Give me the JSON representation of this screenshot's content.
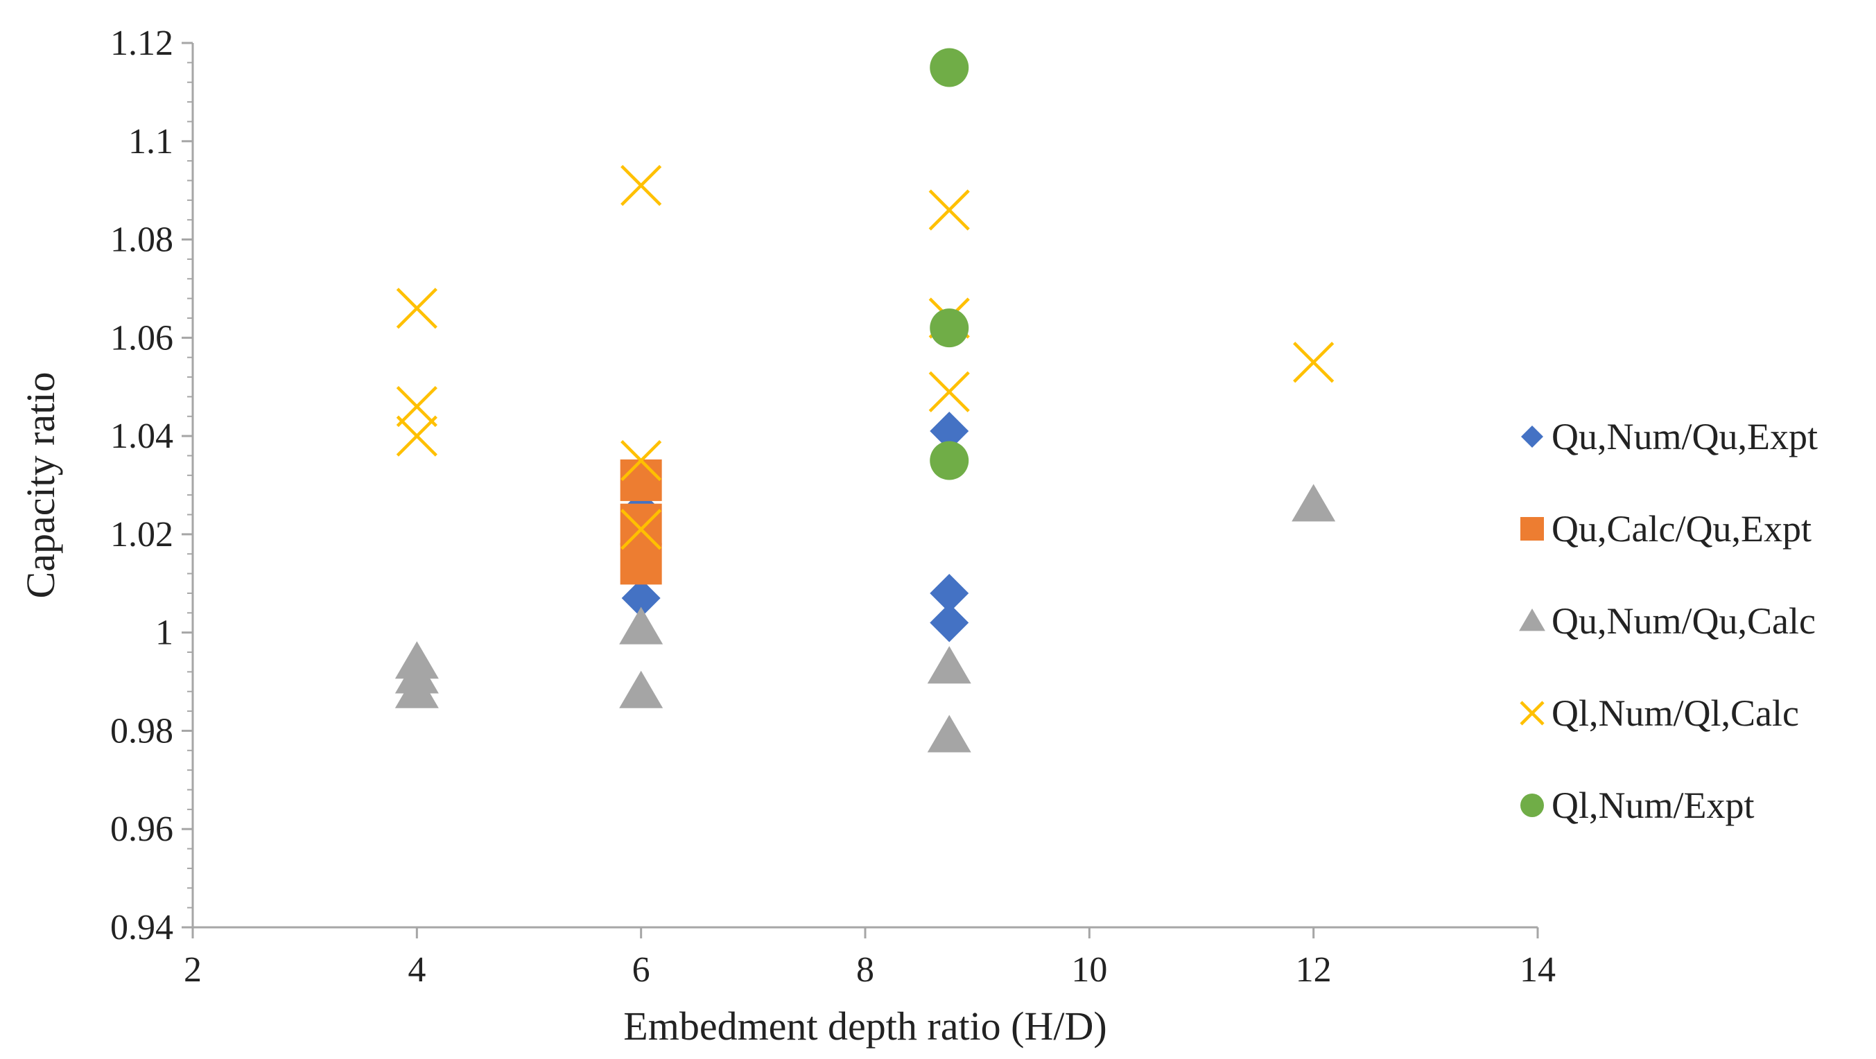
{
  "chart_data": {
    "type": "scatter",
    "title": "",
    "xlabel": "Embedment depth ratio (H/D)",
    "ylabel": "Capacity ratio",
    "xlim": [
      2,
      14
    ],
    "ylim": [
      0.94,
      1.12
    ],
    "x_ticks": [
      2,
      4,
      6,
      8,
      10,
      12,
      14
    ],
    "y_ticks": [
      0.94,
      0.96,
      0.98,
      1,
      1.02,
      1.04,
      1.06,
      1.08,
      1.1,
      1.12
    ],
    "x_tick_labels": [
      "2",
      "4",
      "6",
      "8",
      "10",
      "12",
      "14"
    ],
    "y_tick_labels": [
      "0.94",
      "0.96",
      "0.98",
      "1",
      "1.02",
      "1.04",
      "1.06",
      "1.08",
      "1.1",
      "1.12"
    ],
    "y_minor_step": 0.004,
    "grid": false,
    "legend_position": "right",
    "series": [
      {
        "name": "Qu,Num/Qu,Expt",
        "marker": "diamond",
        "color": "#4472C4",
        "points": [
          [
            6,
            1.007
          ],
          [
            6,
            1.025
          ],
          [
            8.75,
            1.041
          ],
          [
            8.75,
            1.008
          ],
          [
            8.75,
            1.002
          ]
        ]
      },
      {
        "name": "Qu,Calc/Qu,Expt",
        "marker": "square",
        "color": "#ED7D31",
        "points": [
          [
            6,
            1.031
          ],
          [
            6,
            1.022
          ],
          [
            6,
            1.014
          ]
        ]
      },
      {
        "name": "Qu,Num/Qu,Calc",
        "marker": "triangle",
        "color": "#A5A5A5",
        "points": [
          [
            4,
            0.994
          ],
          [
            4,
            0.991
          ],
          [
            4,
            0.988
          ],
          [
            6,
            1.001
          ],
          [
            6,
            0.988
          ],
          [
            8.75,
            0.993
          ],
          [
            8.75,
            0.979
          ],
          [
            12,
            1.026
          ]
        ]
      },
      {
        "name": "Ql,Num/Ql,Calc",
        "marker": "x",
        "color": "#FFC000",
        "points": [
          [
            4,
            1.066
          ],
          [
            4,
            1.046
          ],
          [
            4,
            1.04
          ],
          [
            6,
            1.091
          ],
          [
            6,
            1.035
          ],
          [
            6,
            1.021
          ],
          [
            8.75,
            1.086
          ],
          [
            8.75,
            1.064
          ],
          [
            8.75,
            1.049
          ],
          [
            12,
            1.055
          ]
        ]
      },
      {
        "name": "Ql,Num/Expt",
        "marker": "circle",
        "color": "#70AD47",
        "points": [
          [
            8.75,
            1.115
          ],
          [
            8.75,
            1.062
          ],
          [
            8.75,
            1.035
          ]
        ]
      }
    ]
  }
}
